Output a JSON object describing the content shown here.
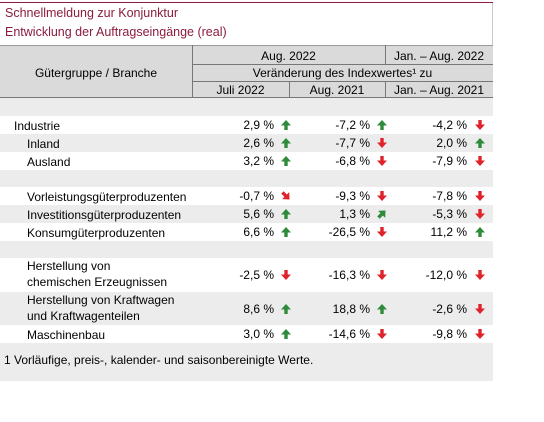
{
  "header": {
    "title": "Schnellmeldung zur Konjunktur",
    "subtitle": "Entwicklung der Auftragseingänge (real)"
  },
  "table": {
    "stub": "Gütergruppe / Branche",
    "group1": "Aug. 2022",
    "group2": "Jan. – Aug. 2022",
    "span": "Veränderung des Indexwertes¹ zu",
    "columns": [
      "Juli 2022",
      "Aug. 2021",
      "Jan. – Aug. 2021"
    ],
    "rows": [
      [
        "Industrie",
        "2,9 %",
        "-7,2 %",
        "-4,2 %"
      ],
      [
        "Inland",
        "2,6 %",
        "-7,7 %",
        "2,0 %"
      ],
      [
        "Ausland",
        "3,2 %",
        "-6,8 %",
        "-7,9 %"
      ],
      [
        "Vorleistungsgüterproduzenten",
        "-0,7 %",
        "-9,3 %",
        "-7,8 %"
      ],
      [
        "Investitionsgüterproduzenten",
        "5,6 %",
        "1,3 %",
        "-5,3 %"
      ],
      [
        "Konsumgüterproduzenten",
        "6,6 %",
        "-26,5 %",
        "11,2 %"
      ],
      [
        [
          "Herstellung von",
          "chemischen Erzeugnissen"
        ],
        "-2,5 %",
        "-16,3 %",
        "-12,0 %"
      ],
      [
        [
          "Herstellung von Kraftwagen",
          "und Kraftwagenteilen"
        ],
        "8,6 %",
        "18,8 %",
        "-2,6 %"
      ],
      [
        "Maschinenbau",
        "3,0 %",
        "-14,6 %",
        "-9,8 %"
      ]
    ]
  },
  "footnote": "1 Vorläufige, preis-, kalender- und saisonbereinigte Werte."
}
